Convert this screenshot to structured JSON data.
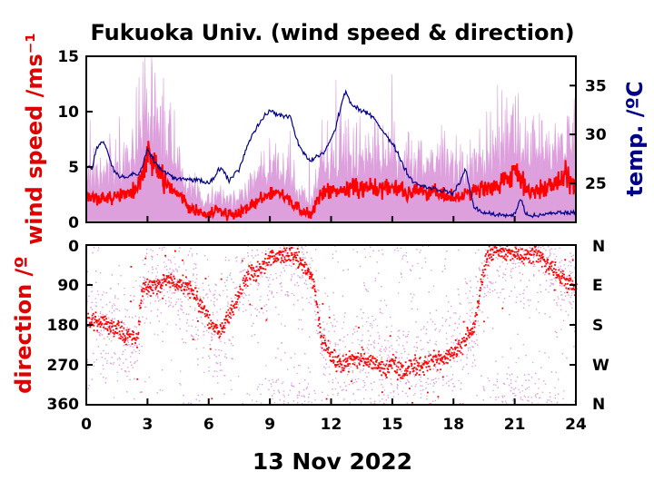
{
  "chart_data": {
    "title": "Fukuoka Univ. (wind speed & direction)",
    "xlabel": "13 Nov 2022",
    "x_ticks": [
      "0",
      "3",
      "6",
      "9",
      "12",
      "15",
      "18",
      "21",
      "24"
    ],
    "xlim": [
      0,
      24
    ],
    "colors": {
      "wind_raw": "#dda0dd",
      "wind_mean": "#ff0000",
      "temperature": "#00008b"
    },
    "panels": [
      {
        "type": "line",
        "ylabel": "wind speed /ms⁻¹",
        "ylim": [
          0,
          15
        ],
        "y_ticks": [
          "0",
          "5",
          "10",
          "15"
        ],
        "y2label": "temp. /ºC",
        "y2lim": [
          21,
          38
        ],
        "y2_ticks": [
          "25",
          "30",
          "35"
        ],
        "series": [
          {
            "key": "wind_speed_mean",
            "x": [
              0,
              0.5,
              1,
              1.5,
              2,
              2.5,
              3,
              3.5,
              4,
              4.5,
              5,
              5.5,
              6,
              6.5,
              7,
              7.5,
              8,
              8.5,
              9,
              9.5,
              10,
              10.5,
              11,
              11.5,
              12,
              12.5,
              13,
              13.5,
              14,
              14.5,
              15,
              15.5,
              16,
              16.5,
              17,
              17.5,
              18,
              18.5,
              19,
              19.5,
              20,
              20.5,
              21,
              21.5,
              22,
              22.5,
              23,
              23.5,
              24
            ],
            "y": [
              2.3,
              2.2,
              2.1,
              2.4,
              2.5,
              3.2,
              5.8,
              5.0,
              3.3,
              2.6,
              1.5,
              1.0,
              0.6,
              1.2,
              0.6,
              0.8,
              1.4,
              2.0,
              2.5,
              2.8,
              1.8,
              1.2,
              0.6,
              2.5,
              2.9,
              3.0,
              3.1,
              3.0,
              3.3,
              3.1,
              3.0,
              2.9,
              2.7,
              2.9,
              2.7,
              2.5,
              2.3,
              2.5,
              2.6,
              3.0,
              3.4,
              3.7,
              5.0,
              3.2,
              2.8,
              3.2,
              3.5,
              4.3,
              3.6
            ]
          },
          {
            "key": "temperature",
            "x": [
              0,
              0.3,
              0.5,
              0.8,
              1,
              1.3,
              1.6,
              2,
              2.3,
              2.6,
              3,
              3.3,
              3.6,
              4,
              4.3,
              4.6,
              5,
              5.5,
              6,
              6.3,
              6.5,
              6.7,
              7,
              7.5,
              8,
              8.5,
              9,
              9.3,
              9.5,
              9.8,
              10,
              10.3,
              10.6,
              11,
              11.3,
              11.6,
              12,
              12.2,
              12.5,
              12.7,
              13,
              13.3,
              13.6,
              14,
              14.5,
              15,
              15.3,
              15.6,
              16,
              16.5,
              17,
              17.5,
              18,
              18.3,
              18.6,
              19,
              19.5,
              20,
              20.5,
              21,
              21.3,
              21.5,
              21.8,
              22,
              22.5,
              23,
              23.5,
              24
            ],
            "y": [
              26.7,
              26.5,
              28.6,
              29.3,
              28.5,
              26.5,
              25.7,
              25.6,
              26.0,
              25.8,
              28.4,
              27.4,
              26.5,
              26.0,
              25.5,
              25.4,
              25.4,
              25.3,
              25.0,
              25.5,
              26.5,
              26.3,
              25.3,
              26.5,
              29.5,
              31.2,
              32.5,
              32.0,
              32.1,
              31.8,
              31.8,
              29.5,
              28.2,
              27.2,
              27.8,
              28.0,
              29.5,
              30.5,
              33.0,
              34.5,
              33.0,
              32.6,
              32.3,
              32.0,
              30.5,
              29.0,
              28.0,
              26.5,
              25.2,
              24.7,
              24.5,
              24.2,
              24.0,
              25.0,
              26.5,
              22.5,
              22.0,
              21.8,
              21.7,
              21.8,
              23.5,
              22.0,
              21.7,
              21.6,
              21.8,
              22.0,
              22.0,
              22.0
            ]
          }
        ]
      },
      {
        "type": "scatter",
        "ylabel": "direction /º",
        "ylim": [
          0,
          360
        ],
        "y_ticks": [
          "0",
          "90",
          "180",
          "270",
          "360"
        ],
        "y2_ticks": [
          "N",
          "E",
          "S",
          "W",
          "N"
        ],
        "series": [
          {
            "key": "wind_direction_mean",
            "x": [
              0,
              0.5,
              1,
              1.5,
              2,
              2.5,
              2.7,
              3,
              3.5,
              4,
              4.5,
              5,
              5.5,
              6,
              6.5,
              7,
              7.5,
              8,
              8.5,
              9,
              9.5,
              10,
              10.5,
              11,
              11.2,
              11.5,
              12,
              12.5,
              13,
              13.5,
              14,
              14.5,
              15,
              15.5,
              16,
              16.5,
              17,
              17.5,
              18,
              18.5,
              19,
              19.3,
              19.6,
              20,
              20.5,
              21,
              21.5,
              22,
              22.5,
              23,
              23.5,
              24
            ],
            "y": [
              170,
              175,
              180,
              190,
              205,
              210,
              100,
              92,
              90,
              80,
              90,
              95,
              130,
              170,
              200,
              150,
              110,
              60,
              60,
              30,
              25,
              20,
              40,
              70,
              110,
              210,
              250,
              270,
              260,
              255,
              265,
              280,
              270,
              290,
              270,
              275,
              260,
              255,
              240,
              220,
              180,
              90,
              30,
              10,
              20,
              15,
              30,
              20,
              40,
              60,
              80,
              100
            ]
          }
        ]
      }
    ]
  }
}
